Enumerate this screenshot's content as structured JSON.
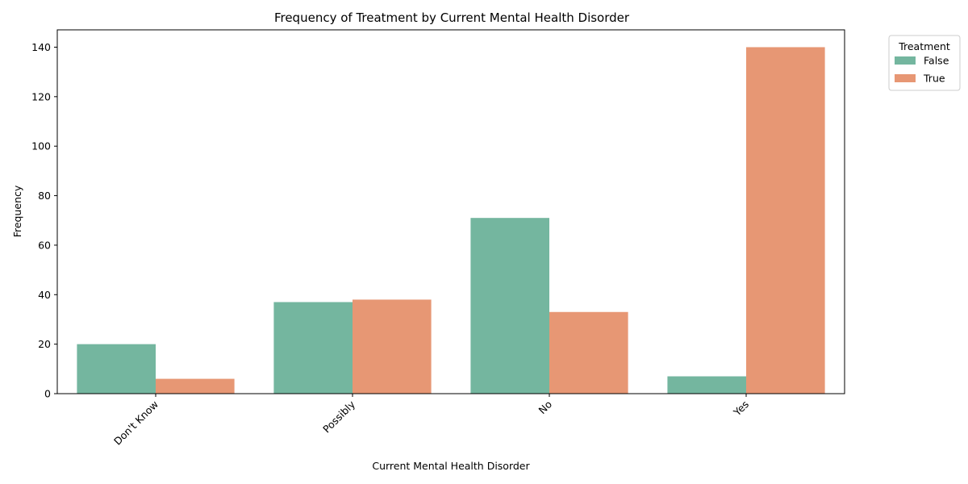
{
  "chart_data": {
    "type": "bar",
    "title": "Frequency of Treatment by Current Mental Health Disorder",
    "xlabel": "Current Mental Health Disorder",
    "ylabel": "Frequency",
    "categories": [
      "Don't Know",
      "Possibly",
      "No",
      "Yes"
    ],
    "series": [
      {
        "name": "False",
        "values": [
          20,
          37,
          71,
          7
        ],
        "color": "#74b69f"
      },
      {
        "name": "True",
        "values": [
          6,
          38,
          33,
          140
        ],
        "color": "#e79774"
      }
    ],
    "ylim": [
      0,
      147
    ],
    "yticks": [
      0,
      20,
      40,
      60,
      80,
      100,
      120,
      140
    ],
    "grid": false,
    "legend": {
      "title": "Treatment",
      "placement": "outside-top-right"
    }
  }
}
